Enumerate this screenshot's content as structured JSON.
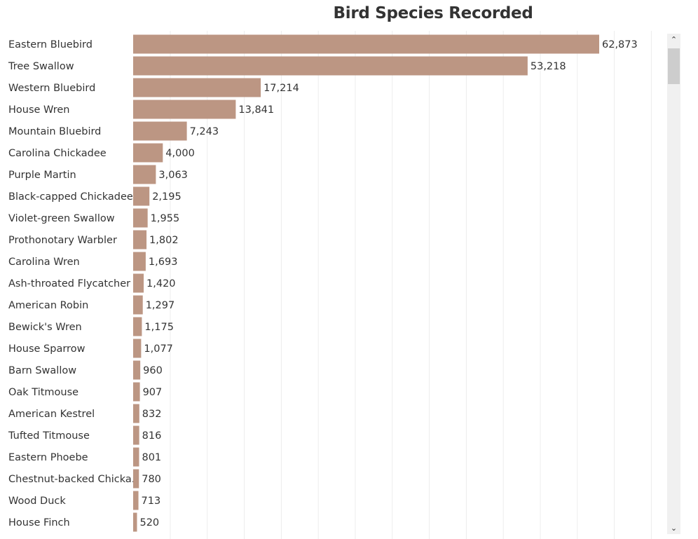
{
  "title": "Bird Species Recorded",
  "icons": {
    "scroll_up": "chevron-up-icon",
    "scroll_down": "chevron-down-icon"
  },
  "chart_data": {
    "type": "bar",
    "orientation": "horizontal",
    "title": "Bird Species Recorded",
    "xlabel": "",
    "ylabel": "",
    "xlim": [
      0,
      70000
    ],
    "grid": "vertical",
    "bar_color": "#bc9683",
    "categories": [
      "Eastern Bluebird",
      "Tree Swallow",
      "Western Bluebird",
      "House Wren",
      "Mountain Bluebird",
      "Carolina Chickadee",
      "Purple Martin",
      "Black-capped Chickadee",
      "Violet-green Swallow",
      "Prothonotary Warbler",
      "Carolina Wren",
      "Ash-throated Flycatcher",
      "American Robin",
      "Bewick's Wren",
      "House Sparrow",
      "Barn Swallow",
      "Oak Titmouse",
      "American Kestrel",
      "Tufted Titmouse",
      "Eastern Phoebe",
      "Chestnut-backed Chicka..",
      "Wood Duck",
      "House Finch"
    ],
    "values": [
      62873,
      53218,
      17214,
      13841,
      7243,
      4000,
      3063,
      2195,
      1955,
      1802,
      1693,
      1420,
      1297,
      1175,
      1077,
      960,
      907,
      832,
      816,
      801,
      780,
      713,
      520
    ],
    "value_labels": [
      "62,873",
      "53,218",
      "17,214",
      "13,841",
      "7,243",
      "4,000",
      "3,063",
      "2,195",
      "1,955",
      "1,802",
      "1,693",
      "1,420",
      "1,297",
      "1,175",
      "1,077",
      "960",
      "907",
      "832",
      "816",
      "801",
      "780",
      "713",
      "520"
    ]
  }
}
